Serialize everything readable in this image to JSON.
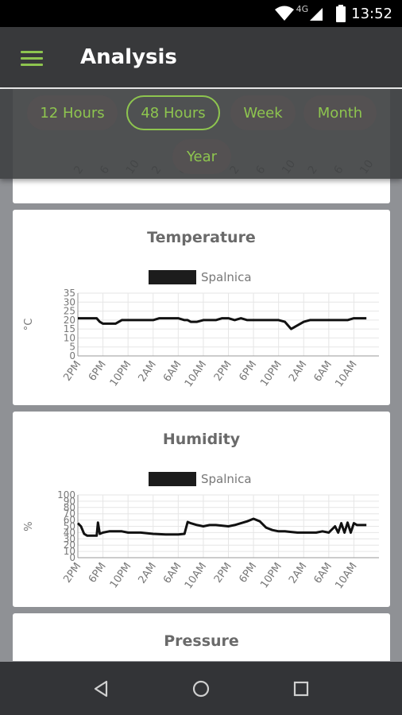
{
  "status": {
    "network": "4G",
    "time": "13:52"
  },
  "appbar": {
    "title": "Analysis",
    "menu_icon": "menu-icon"
  },
  "tabs": [
    {
      "label": "12 Hours",
      "active": false
    },
    {
      "label": "48 Hours",
      "active": true
    },
    {
      "label": "Week",
      "active": false
    },
    {
      "label": "Month",
      "active": false
    },
    {
      "label": "Year",
      "active": false
    }
  ],
  "top_card_ticks": [
    "2",
    "6",
    "10",
    "2",
    "6",
    "10",
    "2",
    "6",
    "10",
    "2",
    "6",
    "10"
  ],
  "cards": {
    "temperature": {
      "title": "Temperature"
    },
    "humidity": {
      "title": "Humidity"
    },
    "pressure": {
      "title": "Pressure"
    }
  },
  "chart_data": [
    {
      "type": "line",
      "title": "Temperature",
      "ylabel": "°C",
      "ylim": [
        0,
        35
      ],
      "y_ticks": [
        "0",
        "5",
        "10",
        "15",
        "20",
        "25",
        "30",
        "35"
      ],
      "x_ticks": [
        "2PM",
        "6PM",
        "10PM",
        "2AM",
        "6AM",
        "10AM",
        "2PM",
        "6PM",
        "10PM",
        "2AM",
        "6AM",
        "10AM"
      ],
      "legend": "top-center",
      "grid": true,
      "series": [
        {
          "name": "Spalnica",
          "x": [
            0,
            1,
            2,
            3,
            3.5,
            4,
            5,
            6,
            7,
            8,
            9,
            10,
            11,
            12,
            13,
            14,
            15,
            16,
            17,
            17.5,
            18,
            18.3,
            18.6,
            19,
            20,
            21,
            22,
            23,
            24,
            25,
            26,
            27,
            28,
            29,
            30,
            31,
            32,
            33,
            34,
            35,
            36,
            37,
            38,
            39,
            40,
            41,
            42,
            43,
            44,
            45,
            46
          ],
          "values": [
            21,
            21,
            21,
            21,
            19,
            18,
            18,
            18,
            20,
            20,
            20,
            20,
            20,
            20,
            21,
            21,
            21,
            21,
            20,
            20,
            19,
            19,
            19,
            19,
            20,
            20,
            20,
            21,
            21,
            20,
            21,
            20,
            20,
            20,
            20,
            20,
            20,
            19,
            15,
            17,
            19,
            20,
            20,
            20,
            20,
            20,
            20,
            20,
            21,
            21,
            21
          ]
        }
      ]
    },
    {
      "type": "line",
      "title": "Humidity",
      "ylabel": "%",
      "ylim": [
        0,
        100
      ],
      "y_ticks": [
        "0",
        "10",
        "20",
        "30",
        "40",
        "50",
        "60",
        "70",
        "80",
        "90",
        "100"
      ],
      "x_ticks": [
        "2PM",
        "6PM",
        "10PM",
        "2AM",
        "6AM",
        "10AM",
        "2PM",
        "6PM",
        "10PM",
        "2AM",
        "6AM",
        "10AM"
      ],
      "legend": "top-center",
      "grid": true,
      "series": [
        {
          "name": "Spalnica",
          "x": [
            0,
            0.5,
            1,
            1.5,
            2,
            3,
            3.2,
            3.5,
            4,
            5,
            6,
            7,
            8,
            10,
            12,
            14,
            16,
            17,
            17.5,
            18,
            19,
            20,
            21,
            22,
            24,
            25,
            26,
            27,
            28,
            29,
            30,
            31,
            32,
            33,
            34,
            35,
            36,
            37,
            38,
            39,
            40,
            41,
            41.5,
            42,
            42.5,
            43,
            43.5,
            44,
            44.5,
            45,
            46
          ],
          "values": [
            55,
            50,
            38,
            35,
            35,
            35,
            56,
            38,
            40,
            42,
            42,
            42,
            40,
            40,
            38,
            37,
            37,
            38,
            57,
            55,
            52,
            50,
            52,
            52,
            50,
            52,
            55,
            58,
            62,
            58,
            48,
            44,
            42,
            42,
            41,
            40,
            40,
            40,
            40,
            42,
            40,
            50,
            40,
            55,
            40,
            56,
            40,
            55,
            52,
            52,
            52
          ]
        }
      ]
    }
  ]
}
